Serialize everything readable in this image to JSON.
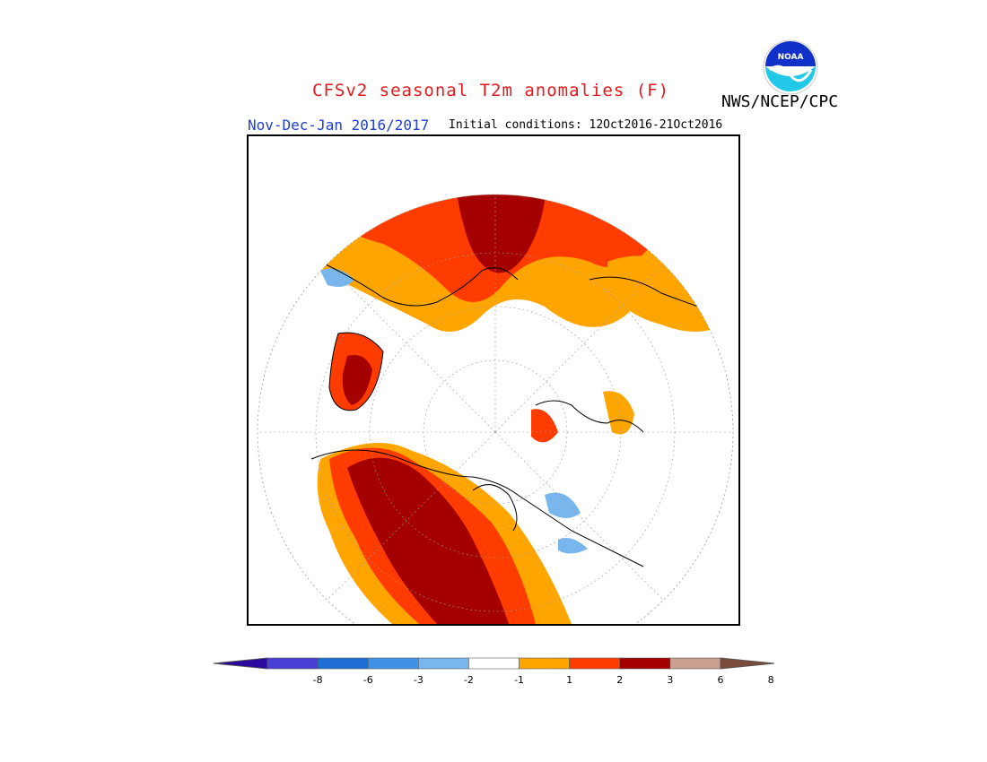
{
  "title": "CFSv2 seasonal T2m anomalies (F)",
  "agency": "NWS/NCEP/CPC",
  "period": "Nov-Dec-Jan 2016/2017",
  "initial_conditions": "Initial conditions: 12Oct2016-21Oct2016",
  "logo_text": "NOAA",
  "colorbar": {
    "ticks": [
      "-8",
      "-6",
      "-3",
      "-2",
      "-1",
      "1",
      "2",
      "3",
      "6",
      "8"
    ],
    "colors": [
      "#2a0a9e",
      "#4a3fd4",
      "#1f6fd6",
      "#3f92e8",
      "#7ab6ee",
      "#ffffff",
      "#ffa500",
      "#ff3c00",
      "#a50000",
      "#c9a090",
      "#7a4a3a"
    ]
  },
  "map_colors": {
    "1_to_2": "#ffa500",
    "2_to_3": "#ff3c00",
    "3_to_6": "#a50000",
    "6_to_8": "#c9a090",
    "minus1_to_minus2": "#7ab6ee",
    "minus2_to_minus3": "#3f92e8"
  }
}
